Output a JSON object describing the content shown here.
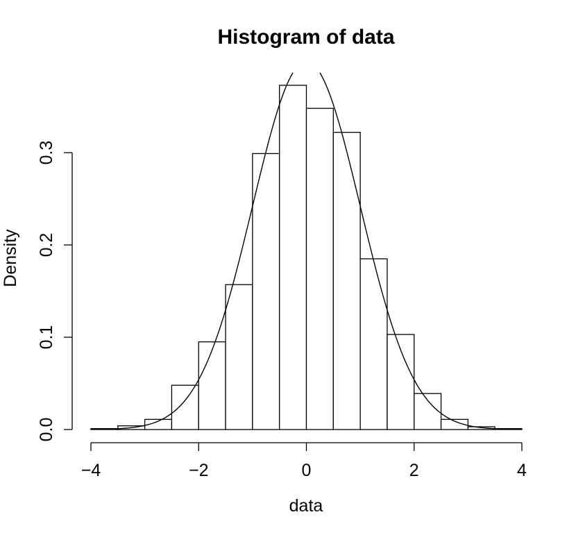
{
  "chart_data": {
    "type": "bar",
    "title": "Histogram of data",
    "xlabel": "data",
    "ylabel": "Density",
    "xlim": [
      -4,
      4
    ],
    "ylim": [
      0,
      0.37
    ],
    "x_ticks": [
      -4,
      -2,
      0,
      2,
      4
    ],
    "x_tick_labels": [
      "−4",
      "−2",
      "0",
      "2",
      "4"
    ],
    "y_ticks": [
      0,
      0.1,
      0.2,
      0.3
    ],
    "y_tick_labels": [
      "0.0",
      "0.1",
      "0.2",
      "0.3"
    ],
    "grid": false,
    "bins": [
      {
        "start": -4.0,
        "end": -3.5,
        "density": 0.001
      },
      {
        "start": -3.5,
        "end": -3.0,
        "density": 0.004
      },
      {
        "start": -3.0,
        "end": -2.5,
        "density": 0.011
      },
      {
        "start": -2.5,
        "end": -2.0,
        "density": 0.048
      },
      {
        "start": -2.0,
        "end": -1.5,
        "density": 0.095
      },
      {
        "start": -1.5,
        "end": -1.0,
        "density": 0.157
      },
      {
        "start": -1.0,
        "end": -0.5,
        "density": 0.299
      },
      {
        "start": -0.5,
        "end": 0.0,
        "density": 0.373
      },
      {
        "start": 0.0,
        "end": 0.5,
        "density": 0.348
      },
      {
        "start": 0.5,
        "end": 1.0,
        "density": 0.322
      },
      {
        "start": 1.0,
        "end": 1.5,
        "density": 0.185
      },
      {
        "start": 1.5,
        "end": 2.0,
        "density": 0.103
      },
      {
        "start": 2.0,
        "end": 2.5,
        "density": 0.039
      },
      {
        "start": 2.5,
        "end": 3.0,
        "density": 0.011
      },
      {
        "start": 3.0,
        "end": 3.5,
        "density": 0.003
      },
      {
        "start": 3.5,
        "end": 4.0,
        "density": 0.001
      }
    ],
    "overlay_curve": {
      "type": "normal_density",
      "mean": 0,
      "sd": 1
    }
  }
}
